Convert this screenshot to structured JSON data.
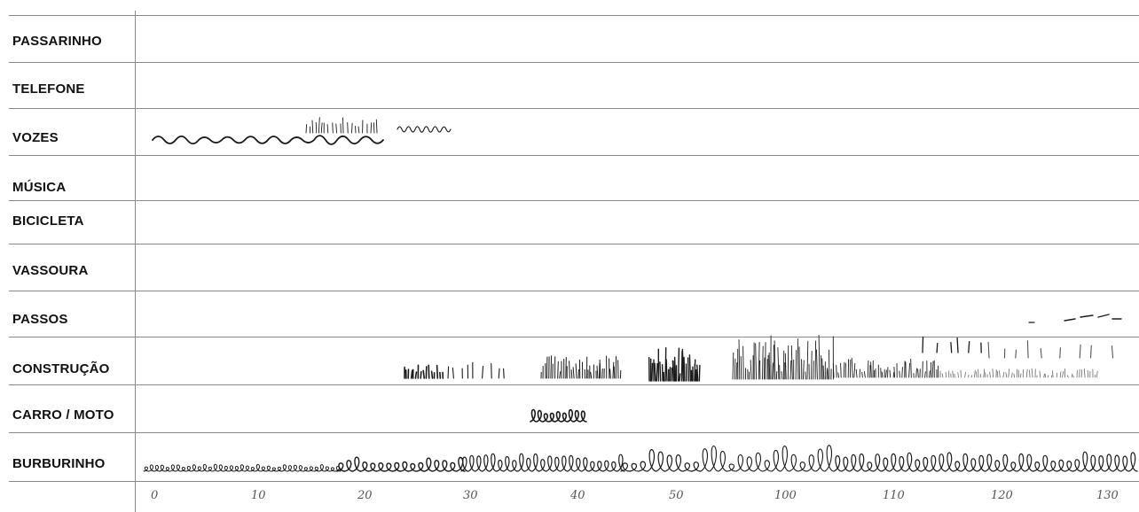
{
  "rows": [
    {
      "label": "PASSARINHO"
    },
    {
      "label": "TELEFONE"
    },
    {
      "label": "VOZES"
    },
    {
      "label": "MÚSICA"
    },
    {
      "label": "BICICLETA"
    },
    {
      "label": "VASSOURA"
    },
    {
      "label": "PASSOS"
    },
    {
      "label": "CONSTRUÇÃO"
    },
    {
      "label": "CARRO / MOTO"
    },
    {
      "label": "BURBURINHO"
    }
  ],
  "axis": {
    "ticks": [
      "0",
      "10",
      "20",
      "30",
      "40",
      "50",
      "100",
      "110",
      "120",
      "130"
    ]
  },
  "colors": {
    "ink": "#1a1a1a",
    "grid": "#8a8a8a",
    "background": "#ffffff"
  }
}
